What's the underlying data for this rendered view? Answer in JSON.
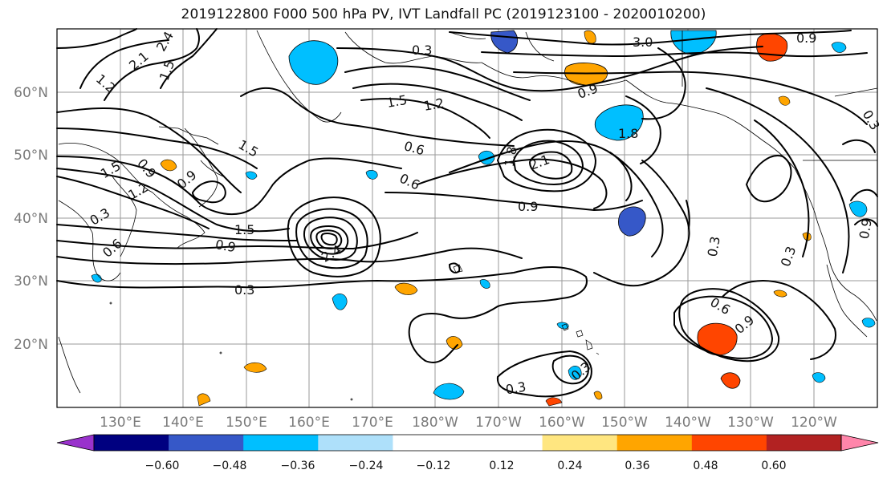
{
  "title": "2019122800 F000 500 hPa PV, IVT Landfall PC (2019123100 - 2020010200)",
  "lat_labels": [
    "60°N",
    "50°N",
    "40°N",
    "30°N",
    "20°N"
  ],
  "lon_labels": [
    "130°E",
    "140°E",
    "150°E",
    "160°E",
    "170°E",
    "180°W",
    "170°W",
    "160°W",
    "150°W",
    "140°W",
    "130°W",
    "120°W"
  ],
  "colorbar": {
    "colors": [
      "#9932cc",
      "#000080",
      "#3658c8",
      "#00bfff",
      "#aee0fa",
      "#ffffff",
      "#ffffff",
      "#ffe680",
      "#ffa500",
      "#ff4500",
      "#b22222",
      "#ff85aa"
    ],
    "tick_labels": [
      "−0.60",
      "−0.48",
      "−0.36",
      "−0.24",
      "−0.12",
      "0.12",
      "0.24",
      "0.36",
      "0.48",
      "0.60"
    ]
  },
  "contour_labels": [
    "0.3",
    "3.0",
    "0.9",
    "2.1",
    "2.4",
    "1.2",
    "1.5",
    "1.5",
    "1.2",
    "0.9",
    "0.6",
    "0.6",
    "1.8",
    "2.1",
    "1.8",
    "0.9",
    "1.5",
    "0.9",
    "1.5",
    "1.2",
    "0.9",
    "0.3",
    "0.6",
    "0.3",
    "0.9",
    "2.4",
    "1.5",
    "0.3",
    "0.3",
    "0.6",
    "0.9",
    "0.3",
    "0.3",
    "0.9",
    "0.3"
  ],
  "map_colors": {
    "negative": "#00bfff",
    "negative_strong": "#3658c8",
    "positive": "#ffa500",
    "positive_strong": "#ff4500"
  }
}
